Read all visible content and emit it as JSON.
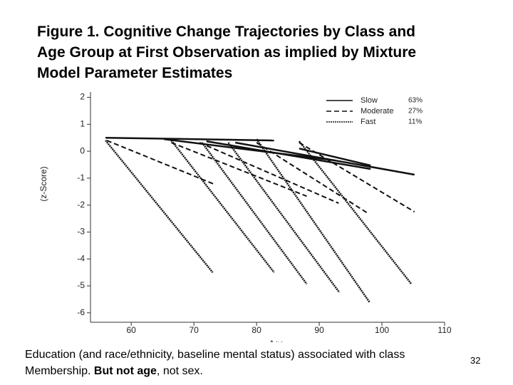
{
  "chart_data": {
    "type": "line",
    "title_lines": [
      "Figure 1. Cognitive Change Trajectories by Class and",
      "Age Group at First Observation as implied by Mixture",
      "Model Parameter Estimates"
    ],
    "x_label": "Age",
    "y_label": "(z-Score)",
    "xlim": [
      53.5,
      110
    ],
    "ylim": [
      -6.35,
      2.2
    ],
    "xticks": [
      60,
      70,
      80,
      90,
      100,
      110
    ],
    "yticks": [
      -6,
      -5,
      -4,
      -3,
      -2,
      -1,
      0,
      1,
      2
    ],
    "series": [
      {
        "name": "Slow",
        "share": "63%",
        "color": "#111111",
        "dash": "solid",
        "segments": [
          {
            "x": [
              55.9,
              82.8
            ],
            "values": [
              0.5,
              0.4
            ]
          },
          {
            "x": [
              65.2,
              92.5
            ],
            "values": [
              0.45,
              -0.34
            ]
          },
          {
            "x": [
              72.0,
              98.2
            ],
            "values": [
              0.37,
              -0.66
            ]
          },
          {
            "x": [
              76.6,
              105.2
            ],
            "values": [
              0.32,
              -0.87
            ]
          },
          {
            "x": [
              86.8,
              98.2
            ],
            "values": [
              0.1,
              -0.53
            ]
          }
        ]
      },
      {
        "name": "Moderate",
        "share": "27%",
        "color": "#111111",
        "dash": "dashed",
        "segments": [
          {
            "x": [
              56.1,
              73.2
            ],
            "values": [
              0.4,
              -1.22
            ]
          },
          {
            "x": [
              66.4,
              88.0
            ],
            "values": [
              0.32,
              -1.67
            ]
          },
          {
            "x": [
              70.9,
              93.1
            ],
            "values": [
              0.32,
              -1.93
            ]
          },
          {
            "x": [
              80.0,
              97.6
            ],
            "values": [
              0.32,
              -2.28
            ]
          },
          {
            "x": [
              86.8,
              105.2
            ],
            "values": [
              0.32,
              -2.25
            ]
          }
        ]
      },
      {
        "name": "Fast",
        "share": "11%",
        "color": "#111111",
        "dash": "dotted",
        "segments": [
          {
            "x": [
              55.9,
              73.0
            ],
            "values": [
              0.4,
              -4.5
            ]
          },
          {
            "x": [
              66.4,
              82.8
            ],
            "values": [
              0.4,
              -4.5
            ]
          },
          {
            "x": [
              71.3,
              88.0
            ],
            "values": [
              0.32,
              -4.93
            ]
          },
          {
            "x": [
              75.5,
              93.2
            ],
            "values": [
              0.32,
              -5.24
            ]
          },
          {
            "x": [
              80.0,
              98.0
            ],
            "values": [
              0.45,
              -5.6
            ]
          },
          {
            "x": [
              86.8,
              104.7
            ],
            "values": [
              0.37,
              -4.93
            ]
          }
        ]
      }
    ]
  },
  "caption": {
    "part1": "Education (and race/ethnicity, baseline mental status) associated with class Membership. ",
    "bold": "But not age",
    "part2": ", not sex."
  },
  "page_number": "32"
}
